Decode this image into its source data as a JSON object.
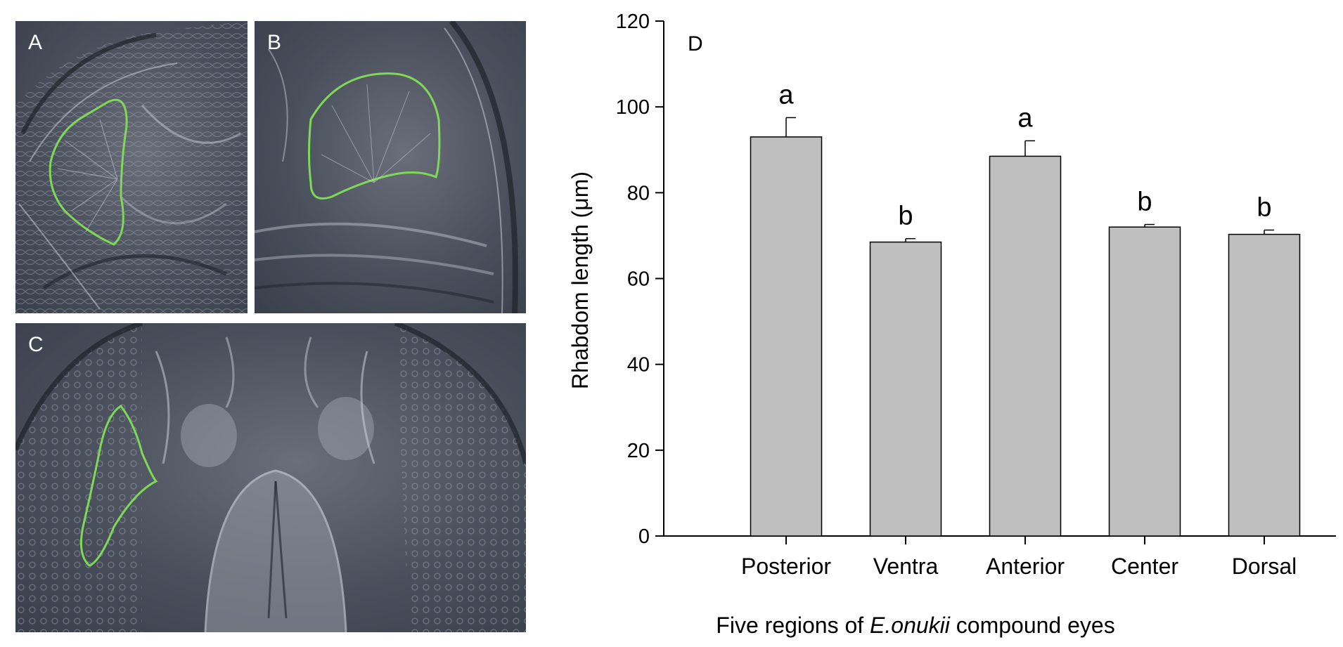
{
  "panels": {
    "a": {
      "letter": "A"
    },
    "b": {
      "letter": "B"
    },
    "c": {
      "letter": "C"
    }
  },
  "chart_data": {
    "type": "bar",
    "panel_label": "D",
    "categories": [
      "Posterior",
      "Ventra",
      "Anterior",
      "Center",
      "Dorsal"
    ],
    "values": [
      93,
      68.5,
      88.5,
      72,
      70.3
    ],
    "errors": [
      4.5,
      0.8,
      3.6,
      0.6,
      1.0
    ],
    "significance": [
      "a",
      "b",
      "a",
      "b",
      "b"
    ],
    "ylabel": "Rhabdom length (μm)",
    "xlabel_prefix": "Five regions of ",
    "xlabel_species": "E.onukii",
    "xlabel_suffix": " compound eyes",
    "ylim": [
      0,
      120
    ],
    "yticks": [
      0,
      20,
      40,
      60,
      80,
      100,
      120
    ],
    "bar_color": "#bfbfbf",
    "outline_color": "#000000",
    "outline_color_panels": "#7ed957"
  }
}
